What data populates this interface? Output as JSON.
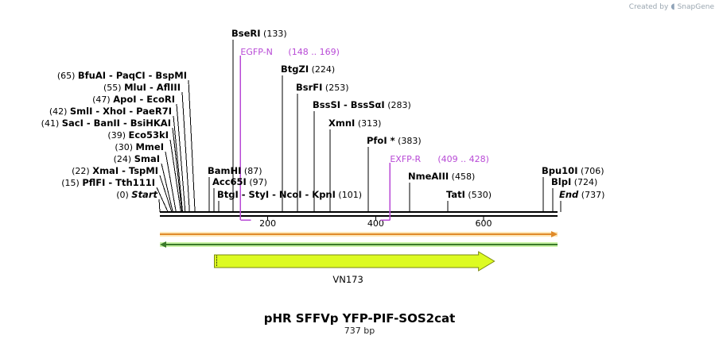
{
  "brand": {
    "created_by": "Created by",
    "product": "SnapGene"
  },
  "map": {
    "title": "pHR SFFVp YFP-PIF-SOS2cat",
    "size_label": "737 bp",
    "length": 737,
    "ruler_ticks": [
      200,
      400,
      600
    ]
  },
  "enzymes": {
    "left": [
      {
        "pos": "(65)",
        "names": [
          "BfuAI",
          "PaqCI",
          "BspMI"
        ],
        "site": 65
      },
      {
        "pos": "(55)",
        "names": [
          "MluI",
          "AflIII"
        ],
        "site": 55
      },
      {
        "pos": "(47)",
        "names": [
          "ApoI",
          "EcoRI"
        ],
        "site": 47
      },
      {
        "pos": "(42)",
        "names": [
          "SmlI",
          "XhoI",
          "PaeR7I"
        ],
        "site": 42
      },
      {
        "pos": "(41)",
        "names": [
          "SacI",
          "BanII",
          "BsiHKAI"
        ],
        "site": 41
      },
      {
        "pos": "(39)",
        "names": [
          "Eco53kI"
        ],
        "site": 39
      },
      {
        "pos": "(30)",
        "names": [
          "MmeI"
        ],
        "site": 30
      },
      {
        "pos": "(24)",
        "names": [
          "SmaI"
        ],
        "site": 24
      },
      {
        "pos": "(22)",
        "names": [
          "XmaI",
          "TspMI"
        ],
        "site": 22
      },
      {
        "pos": "(15)",
        "names": [
          "PflFI",
          "Tth111I"
        ],
        "site": 15
      },
      {
        "pos": "(0)",
        "names": [
          "Start"
        ],
        "site": 0,
        "italic": true
      }
    ],
    "right": [
      {
        "names": [
          "BseRI"
        ],
        "pos": "(133)",
        "site": 133
      },
      {
        "names": [
          "BtgZI"
        ],
        "pos": "(224)",
        "site": 224
      },
      {
        "names": [
          "BsrFI"
        ],
        "pos": "(253)",
        "site": 253
      },
      {
        "names": [
          "BssSI",
          "BssSαI"
        ],
        "pos": "(283)",
        "site": 283
      },
      {
        "names": [
          "XmnI"
        ],
        "pos": "(313)",
        "site": 313
      },
      {
        "names": [
          "PfoI *"
        ],
        "pos": "(383)",
        "site": 383
      },
      {
        "names": [
          "BamHI"
        ],
        "pos": "(87)",
        "site": 87
      },
      {
        "names": [
          "Acc65I"
        ],
        "pos": "(97)",
        "site": 97
      },
      {
        "names": [
          "BtgI",
          "StyI",
          "NcoI",
          "KpnI"
        ],
        "pos": "(101)",
        "site": 101
      },
      {
        "names": [
          "NmeAIII"
        ],
        "pos": "(458)",
        "site": 458
      },
      {
        "names": [
          "TatI"
        ],
        "pos": "(530)",
        "site": 530
      },
      {
        "names": [
          "Bpu10I"
        ],
        "pos": "(706)",
        "site": 706
      },
      {
        "names": [
          "BlpI"
        ],
        "pos": "(724)",
        "site": 724
      },
      {
        "names": [
          "End"
        ],
        "pos": "(737)",
        "site": 737,
        "italic": true
      }
    ]
  },
  "primers": [
    {
      "name": "EGFP-N",
      "range": "(148 .. 169)",
      "start": 148,
      "end": 169
    },
    {
      "name": "EXFP-R",
      "range": "(409 .. 428)",
      "start": 409,
      "end": 428
    }
  ],
  "features": [
    {
      "name": "VN173",
      "start": 101,
      "end": 620
    }
  ],
  "colors": {
    "primer": "#b84ad6",
    "feature_fill": "#ddfb22",
    "feature_stroke": "#7a8a10",
    "orf_forward": "#e08a2a",
    "orf_reverse": "#3a7a2a"
  }
}
